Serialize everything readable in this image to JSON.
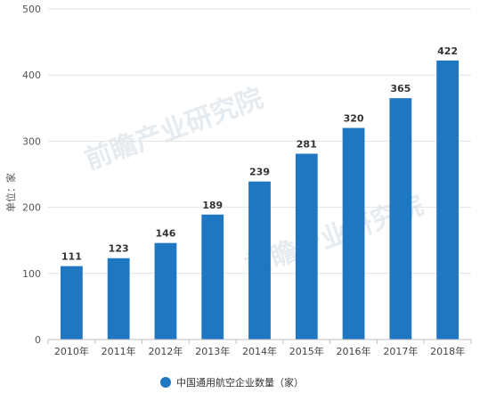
{
  "chart_data": {
    "type": "bar",
    "categories": [
      "2010年",
      "2011年",
      "2012年",
      "2013年",
      "2014年",
      "2015年",
      "2016年",
      "2017年",
      "2018年"
    ],
    "series": [
      {
        "name": "中国通用航空企业数量（家）",
        "values": [
          111,
          123,
          146,
          189,
          239,
          281,
          320,
          365,
          422
        ]
      }
    ],
    "ylabel": "单位：家",
    "ylim": [
      0,
      500
    ],
    "yticks": [
      0,
      100,
      200,
      300,
      400,
      500
    ],
    "grid": true,
    "legend_position": "bottom-center",
    "data_labels": true
  },
  "colors": {
    "bar": "#1f77c2",
    "grid": "#e3e3e3",
    "axis": "#bfbfbf"
  },
  "watermark": {
    "text": "前瞻产业研究院"
  }
}
